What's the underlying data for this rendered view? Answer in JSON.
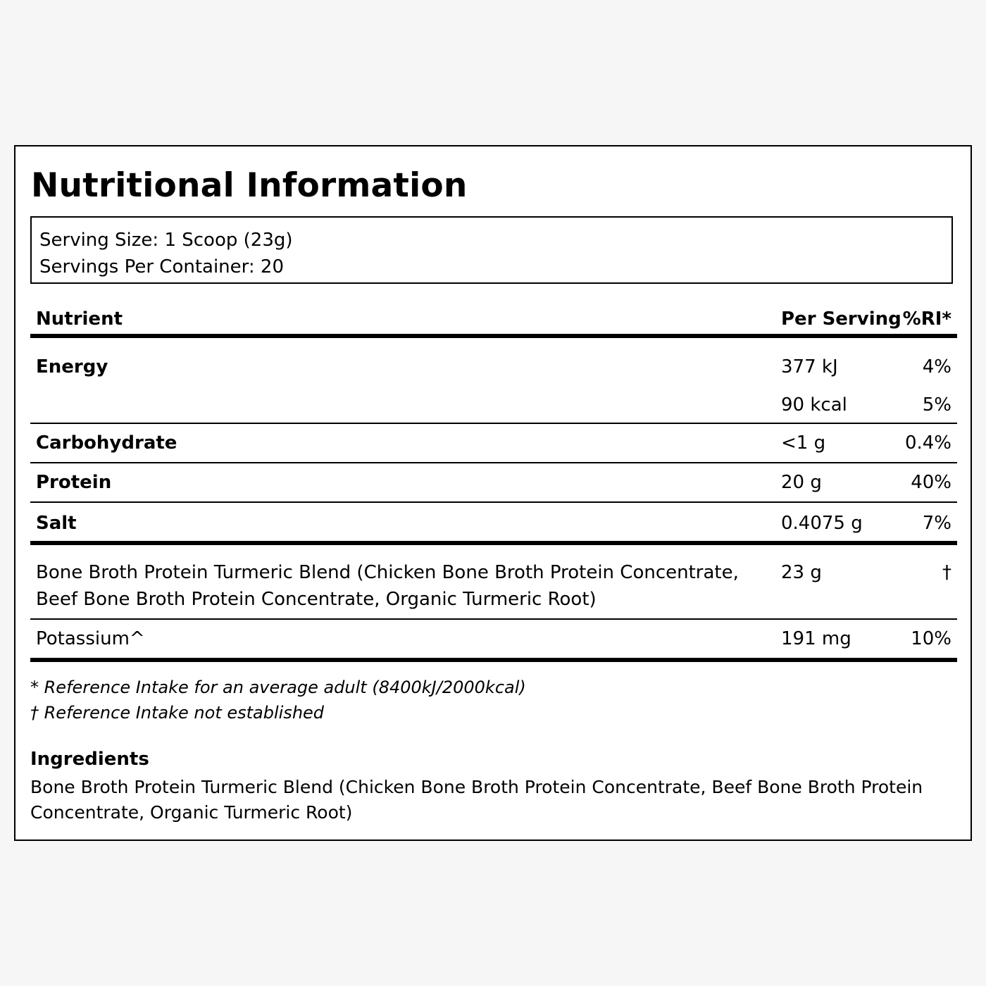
{
  "title": "Nutritional Information",
  "serving": {
    "size": "Serving Size: 1 Scoop (23g)",
    "per_container": "Servings Per Container: 20"
  },
  "table": {
    "headers": {
      "nutrient": "Nutrient",
      "per_serving": "Per Serving",
      "ri": "%RI*"
    },
    "energy": {
      "name": "Energy",
      "kj": "377 kJ",
      "kj_ri": "4%",
      "kcal": "90 kcal",
      "kcal_ri": "5%"
    },
    "carbohydrate": {
      "name": "Carbohydrate",
      "per": "<1 g",
      "ri": "0.4%"
    },
    "protein": {
      "name": "Protein",
      "per": "20 g",
      "ri": "40%"
    },
    "salt": {
      "name": "Salt",
      "per": "0.4075 g",
      "ri": "7%"
    },
    "blend": {
      "name": "Bone Broth Protein Turmeric Blend (Chicken Bone Broth Protein Concentrate, Beef Bone Broth Protein Concentrate, Organic Turmeric Root)",
      "per": "23 g",
      "ri": "†"
    },
    "potassium": {
      "name": "Potassium^",
      "per": "191 mg",
      "ri": "10%"
    }
  },
  "footnotes": {
    "ri_note": "* Reference Intake for an average adult (8400kJ/2000kcal)",
    "dagger_note": "† Reference Intake not established"
  },
  "ingredients": {
    "title": "Ingredients",
    "text": "Bone Broth Protein Turmeric Blend (Chicken Bone Broth Protein Concentrate, Beef Bone Broth Protein Concentrate, Organic Turmeric Root)"
  }
}
